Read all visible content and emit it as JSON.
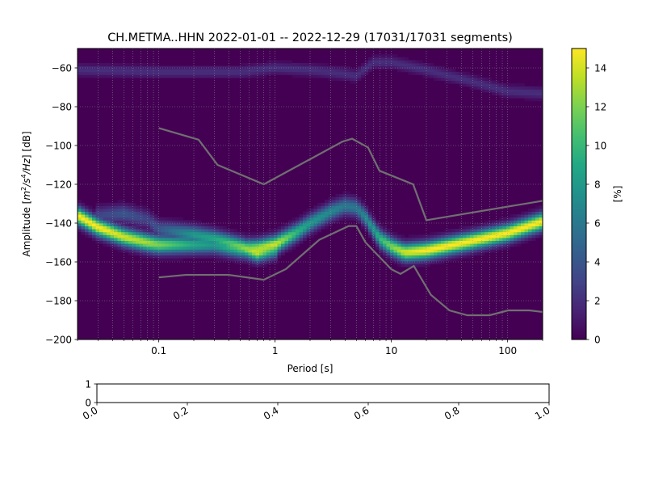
{
  "figure": {
    "title": "CH.METMA..HHN   2022-01-01 -- 2022-12-29  (17031/17031 segments)"
  },
  "chart_data": [
    {
      "type": "heatmap",
      "title": "CH.METMA..HHN   2022-01-01 -- 2022-12-29  (17031/17031 segments)",
      "xlabel": "Period [s]",
      "ylabel": "Amplitude [m²/s⁴/Hz] [dB]",
      "ylabel_parts": {
        "prefix": "Amplitude [",
        "m": "m",
        "two": "2",
        "slash_s": "/s",
        "four": "4",
        "hz": "/Hz",
        "suffix": "] [dB]"
      },
      "x_scale": "log",
      "xlim": [
        0.02,
        200
      ],
      "ylim": [
        -200,
        -50
      ],
      "x_ticks": [
        {
          "value": 0.1,
          "label": "0.1"
        },
        {
          "value": 1,
          "label": "1"
        },
        {
          "value": 10,
          "label": "10"
        },
        {
          "value": 100,
          "label": "100"
        }
      ],
      "y_ticks": [
        {
          "value": -60,
          "label": "−60"
        },
        {
          "value": -80,
          "label": "−80"
        },
        {
          "value": -100,
          "label": "−100"
        },
        {
          "value": -120,
          "label": "−120"
        },
        {
          "value": -140,
          "label": "−140"
        },
        {
          "value": -160,
          "label": "−160"
        },
        {
          "value": -180,
          "label": "−180"
        },
        {
          "value": -200,
          "label": "−200"
        }
      ],
      "grid": true,
      "colormap": "viridis",
      "colorbar": {
        "label": "[%]",
        "range": [
          0,
          15
        ],
        "ticks": [
          {
            "value": 0,
            "label": "0"
          },
          {
            "value": 2,
            "label": "2"
          },
          {
            "value": 4,
            "label": "4"
          },
          {
            "value": 6,
            "label": "6"
          },
          {
            "value": 8,
            "label": "8"
          },
          {
            "value": 10,
            "label": "10"
          },
          {
            "value": 12,
            "label": "12"
          },
          {
            "value": 14,
            "label": "14"
          }
        ]
      },
      "density_ridges": [
        {
          "name": "main",
          "points": [
            [
              0.02,
              -136,
              15
            ],
            [
              0.03,
              -142,
              15
            ],
            [
              0.05,
              -147,
              14
            ],
            [
              0.08,
              -150,
              13
            ],
            [
              0.1,
              -151,
              12
            ],
            [
              0.2,
              -151,
              9
            ],
            [
              0.3,
              -151,
              8
            ],
            [
              0.5,
              -153,
              11
            ],
            [
              0.7,
              -153,
              13
            ],
            [
              1.0,
              -151,
              14
            ],
            [
              1.5,
              -145,
              10
            ],
            [
              2.0,
              -140,
              8
            ],
            [
              3.0,
              -134,
              7
            ],
            [
              4.0,
              -131,
              6
            ],
            [
              5.0,
              -132,
              6
            ],
            [
              6.0,
              -137,
              7
            ],
            [
              7.0,
              -143,
              8
            ],
            [
              8.0,
              -148,
              10
            ],
            [
              10.0,
              -152,
              12
            ],
            [
              13.0,
              -155,
              14
            ],
            [
              20.0,
              -154,
              15
            ],
            [
              50.0,
              -149,
              15
            ],
            [
              100.0,
              -145,
              15
            ],
            [
              200.0,
              -139,
              15
            ]
          ],
          "spread_db": 3.0
        },
        {
          "name": "secondary",
          "points": [
            [
              0.03,
              -136,
              3
            ],
            [
              0.05,
              -135,
              4
            ],
            [
              0.08,
              -138,
              3
            ],
            [
              0.1,
              -143,
              4
            ],
            [
              0.2,
              -146,
              8
            ],
            [
              0.3,
              -148,
              9
            ],
            [
              0.5,
              -152,
              12
            ],
            [
              0.7,
              -155,
              14
            ],
            [
              1.0,
              -153,
              10
            ]
          ],
          "spread_db": 3.0
        },
        {
          "name": "upper-band",
          "points": [
            [
              0.02,
              -61,
              2
            ],
            [
              0.1,
              -62,
              2
            ],
            [
              0.5,
              -62,
              2
            ],
            [
              1.0,
              -60,
              2
            ],
            [
              2.0,
              -61,
              2
            ],
            [
              4.0,
              -63,
              2
            ],
            [
              5.0,
              -64,
              2
            ],
            [
              7.0,
              -57,
              2
            ],
            [
              10.0,
              -57,
              2
            ],
            [
              20.0,
              -61,
              2
            ],
            [
              50.0,
              -67,
              2
            ],
            [
              100.0,
              -72,
              2
            ],
            [
              200.0,
              -73,
              2
            ]
          ],
          "spread_db": 2.0
        }
      ],
      "reference_curves": [
        {
          "points": [
            [
              0.1,
              -91
            ],
            [
              0.22,
              -97
            ],
            [
              0.32,
              -110
            ],
            [
              0.8,
              -120
            ],
            [
              3.8,
              -98
            ],
            [
              4.6,
              -96.5
            ],
            [
              6.3,
              -101
            ],
            [
              7.9,
              -113
            ],
            [
              15.4,
              -120
            ],
            [
              20,
              -138.5
            ],
            [
              200,
              -128.5
            ]
          ]
        },
        {
          "points": [
            [
              0.1,
              -168
            ],
            [
              0.17,
              -166.7
            ],
            [
              0.4,
              -166.7
            ],
            [
              0.8,
              -169.2
            ],
            [
              1.24,
              -163.7
            ],
            [
              2.4,
              -148.6
            ],
            [
              4.3,
              -141.5
            ],
            [
              5.0,
              -141.5
            ],
            [
              6.0,
              -150
            ],
            [
              10,
              -163.8
            ],
            [
              12,
              -166.2
            ],
            [
              15.6,
              -162.1
            ],
            [
              21.9,
              -177
            ],
            [
              31.6,
              -185
            ],
            [
              45,
              -187.5
            ],
            [
              70,
              -187.5
            ],
            [
              101,
              -185
            ],
            [
              154,
              -185
            ],
            [
              200,
              -185.8
            ]
          ]
        }
      ]
    },
    {
      "type": "line",
      "xlim": [
        0,
        1
      ],
      "ylim": [
        0,
        1
      ],
      "x_ticks": [
        {
          "value": 0.0,
          "label": "0.0"
        },
        {
          "value": 0.2,
          "label": "0.2"
        },
        {
          "value": 0.4,
          "label": "0.4"
        },
        {
          "value": 0.6,
          "label": "0.6"
        },
        {
          "value": 0.8,
          "label": "0.8"
        },
        {
          "value": 1.0,
          "label": "1.0"
        }
      ],
      "y_ticks": [
        {
          "value": 0,
          "label": "0"
        },
        {
          "value": 1,
          "label": "1"
        }
      ],
      "series": []
    }
  ]
}
